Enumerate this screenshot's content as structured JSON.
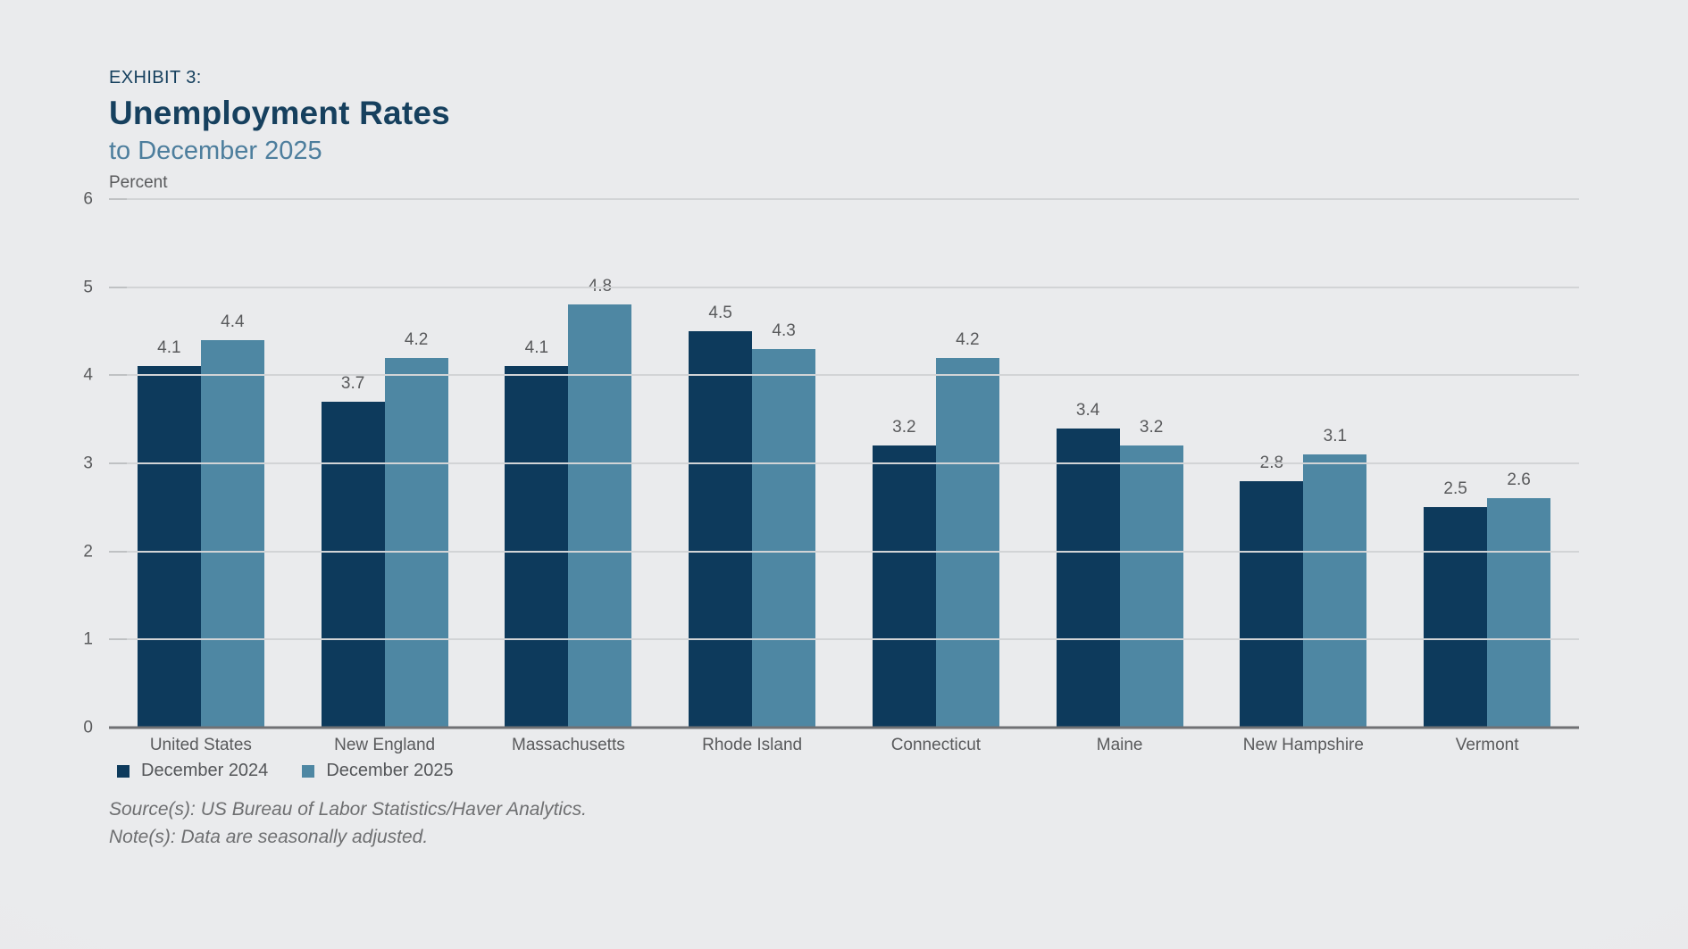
{
  "header": {
    "exhibit": "EXHIBIT 3:",
    "title": "Unemployment Rates",
    "subtitle": "to December 2025"
  },
  "chart_data": {
    "type": "bar",
    "title": "Unemployment Rates to December 2025",
    "unit_label": "Percent",
    "categories": [
      "United States",
      "New England",
      "Massachusetts",
      "Rhode Island",
      "Connecticut",
      "Maine",
      "New Hampshire",
      "Vermont"
    ],
    "series": [
      {
        "name": "December 2024",
        "color": "#0d3a5c",
        "values": [
          4.1,
          3.7,
          4.1,
          4.5,
          3.2,
          3.4,
          2.8,
          2.5
        ]
      },
      {
        "name": "December 2025",
        "color": "#4e87a3",
        "values": [
          4.4,
          4.2,
          4.8,
          4.3,
          4.2,
          3.2,
          3.1,
          2.6
        ]
      }
    ],
    "ylim": [
      0,
      6
    ],
    "ytick_step": 1,
    "grid": "horizontal",
    "legend_position": "bottom-left",
    "value_labels": true,
    "value_label_decimals": 1
  },
  "footer": {
    "source": "Source(s): US Bureau of Labor Statistics/Haver Analytics.",
    "note": "Note(s): Data are seasonally adjusted."
  },
  "colors": {
    "background": "#e9eaec",
    "title": "#16405e",
    "subtitle": "#4d7e9d",
    "grid": "#d2d4d6",
    "axis": "#707174",
    "label_gray": "#595a5c",
    "note_gray": "#6e6f71"
  }
}
